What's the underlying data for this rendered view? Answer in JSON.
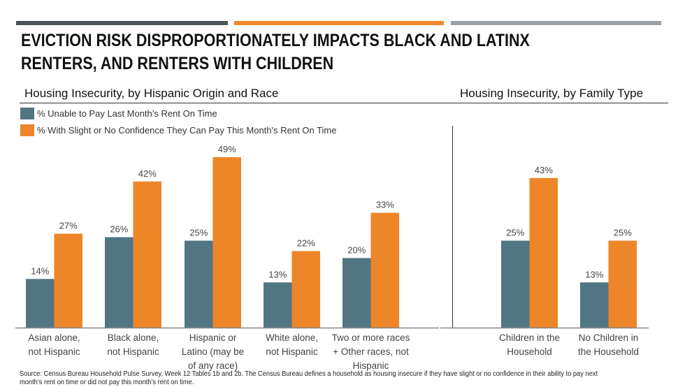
{
  "header": {
    "bar_colors": [
      "#4a5459",
      "#f0892c",
      "#9aa1a6"
    ],
    "title_line1": "EVICTION RISK DISPROPORTIONATELY IMPACTS BLACK AND LATINX",
    "title_line2": "RENTERS, AND RENTERS WITH CHILDREN"
  },
  "legend": [
    {
      "label": "% Unable to Pay Last Month’s Rent On Time",
      "color": "#527583"
    },
    {
      "label": "% With Slight or No Confidence They Can Pay This Month’s Rent On Time",
      "color": "#ec8629"
    }
  ],
  "source": "Source: Census Bureau Household Pulse Survey, Week 12 Tables 1b and 2b. The Census Bureau defines a household as housing insecure if they have slight or no confidence in their ability to pay next month’s rent on time or did not pay this month’s rent on time.",
  "chart_data": [
    {
      "type": "bar",
      "title": "Housing Insecurity, by Hispanic Origin and Race",
      "xlabel": "",
      "ylabel": "",
      "ylim": [
        0,
        50
      ],
      "grid": false,
      "legend_placement": "top-left",
      "categories": [
        "Asian alone,\nnot Hispanic",
        "Black alone,\nnot Hispanic",
        "Hispanic or\nLatino (may be\nof any race)",
        "White alone,\nnot Hispanic",
        "Two or more races\n+ Other races, not\nHispanic"
      ],
      "series": [
        {
          "name": "% Unable to Pay Last Month’s Rent On Time",
          "color": "#527583",
          "values": [
            14,
            26,
            25,
            13,
            20
          ],
          "labels": [
            "14%",
            "26%",
            "25%",
            "13%",
            "20%"
          ]
        },
        {
          "name": "% With Slight or No Confidence They Can Pay This Month’s Rent On Time",
          "color": "#ec8629",
          "values": [
            27,
            42,
            49,
            22,
            33
          ],
          "labels": [
            "27%",
            "42%",
            "49%",
            "22%",
            "33%"
          ]
        }
      ]
    },
    {
      "type": "bar",
      "title": "Housing Insecurity, by Family Type",
      "xlabel": "",
      "ylabel": "",
      "ylim": [
        0,
        50
      ],
      "grid": false,
      "categories": [
        "Children in the\nHousehold",
        "No Children in\nthe Household"
      ],
      "series": [
        {
          "name": "% Unable to Pay Last Month’s Rent On Time",
          "color": "#527583",
          "values": [
            25,
            13
          ],
          "labels": [
            "25%",
            "13%"
          ]
        },
        {
          "name": "% With Slight or No Confidence They Can Pay This Month’s Rent On Time",
          "color": "#ec8629",
          "values": [
            43,
            25
          ],
          "labels": [
            "43%",
            "25%"
          ]
        }
      ]
    }
  ]
}
